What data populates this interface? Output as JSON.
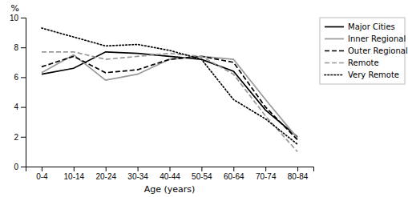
{
  "chart_data": {
    "type": "line",
    "categories": [
      "0-4",
      "10-14",
      "20-24",
      "30-34",
      "40-44",
      "50-54",
      "60-64",
      "70-74",
      "80-84"
    ],
    "series": [
      {
        "name": "Major Cities",
        "color": "#000000",
        "line_style": "solid",
        "values": [
          6.2,
          6.6,
          7.7,
          7.6,
          7.4,
          7.2,
          6.4,
          3.8,
          2.0
        ]
      },
      {
        "name": "Inner Regional",
        "color": "#999999",
        "line_style": "solid",
        "values": [
          6.3,
          7.5,
          5.8,
          6.2,
          7.2,
          7.4,
          7.2,
          4.5,
          1.9
        ]
      },
      {
        "name": "Outer Regional",
        "color": "#000000",
        "line_style": "dashed",
        "values": [
          6.7,
          7.4,
          6.3,
          6.5,
          7.2,
          7.4,
          7.0,
          4.0,
          1.8
        ]
      },
      {
        "name": "Remote",
        "color": "#999999",
        "line_style": "dashed",
        "values": [
          7.7,
          7.7,
          7.2,
          7.4,
          7.6,
          7.4,
          6.2,
          3.4,
          1.0
        ]
      },
      {
        "name": "Very Remote",
        "color": "#000000",
        "line_style": "dotted",
        "values": [
          9.3,
          8.7,
          8.1,
          8.2,
          7.8,
          7.2,
          4.5,
          3.2,
          1.5
        ]
      }
    ],
    "xlabel": "Age (years)",
    "ylabel": "%",
    "ylim": [
      0,
      10
    ],
    "yticks": [
      0,
      2,
      4,
      6,
      8,
      10
    ],
    "grid": false,
    "legend": "upper right"
  }
}
